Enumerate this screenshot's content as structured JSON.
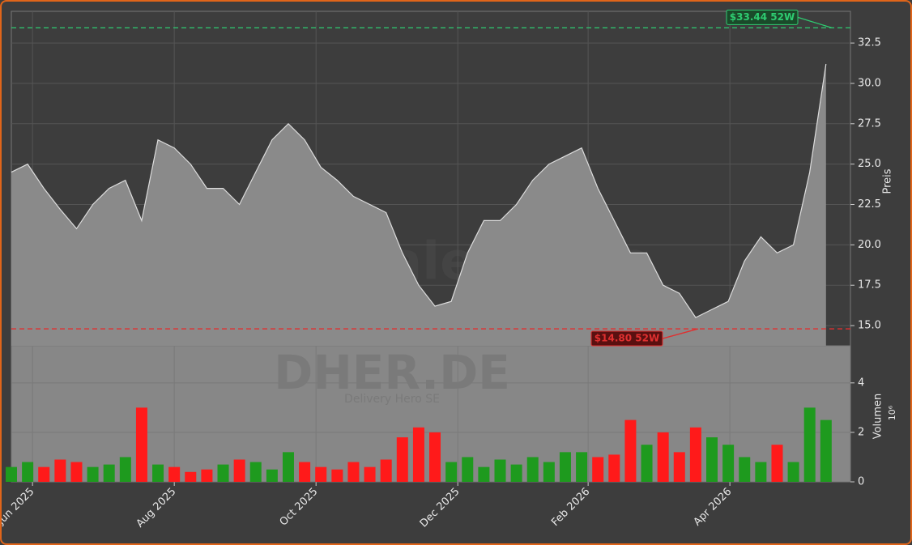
{
  "chart_data": [
    {
      "type": "area",
      "title_watermark": "forexsignale.trade",
      "ticker_watermark": "DHER.DE",
      "name_watermark": "Delivery Hero SE",
      "ylabel": "Preis",
      "color": "#8a8a8a",
      "line_color": "#dddddd",
      "grid": true,
      "values": [
        24.5,
        25.0,
        23.5,
        22.2,
        21.0,
        22.5,
        23.5,
        24.0,
        21.5,
        26.5,
        26.0,
        25.0,
        23.5,
        23.5,
        22.5,
        24.5,
        26.5,
        27.5,
        26.5,
        24.8,
        24.0,
        23.0,
        22.5,
        22.0,
        19.5,
        17.5,
        16.2,
        16.5,
        19.5,
        21.5,
        21.5,
        22.5,
        24.0,
        25.0,
        25.5,
        26.0,
        23.5,
        21.5,
        19.5,
        19.5,
        17.5,
        17.0,
        15.5,
        16.0,
        16.5,
        19.0,
        20.5,
        19.5,
        20.0,
        24.5,
        31.2
      ],
      "xlim": [
        0,
        51.5
      ],
      "xticks": [
        {
          "value": 1.3,
          "label": "Jun 2025"
        },
        {
          "value": 10.0,
          "label": "Aug 2025"
        },
        {
          "value": 18.7,
          "label": "Oct 2025"
        },
        {
          "value": 27.4,
          "label": "Dec 2025"
        },
        {
          "value": 35.4,
          "label": "Feb 2026"
        },
        {
          "value": 44.1,
          "label": "Apr 2026"
        }
      ],
      "ylim": [
        13.75,
        34.46
      ],
      "yticks": [
        {
          "value": 15,
          "label": "15.0"
        },
        17.5,
        {
          "value": 20,
          "label": "20.0"
        },
        22.5,
        {
          "value": 25,
          "label": "25.0"
        },
        27.5,
        {
          "value": 30,
          "label": "30.0"
        },
        32.5
      ],
      "high": {
        "value": 33.44,
        "label": "$33.44 52W",
        "color": "#2ecc71"
      },
      "low": {
        "value": 14.8,
        "label": "$14.80 52W",
        "color": "#e03030"
      }
    },
    {
      "type": "bar",
      "ylabel": "Volumen",
      "offset_label": "10⁶",
      "up_color": "#1e9a1e",
      "down_color": "#ff1a1a",
      "values": [
        0.6,
        0.8,
        0.6,
        0.9,
        0.8,
        0.6,
        0.7,
        1.0,
        3.0,
        0.7,
        0.6,
        0.4,
        0.5,
        0.7,
        0.9,
        0.8,
        0.5,
        1.2,
        0.8,
        0.6,
        0.5,
        0.8,
        0.6,
        0.9,
        1.8,
        2.2,
        2.0,
        0.8,
        1.0,
        0.6,
        0.9,
        0.7,
        1.0,
        0.8,
        1.2,
        1.2,
        1.0,
        1.1,
        2.5,
        1.5,
        2.0,
        1.2,
        2.2,
        1.8,
        1.5,
        1.0,
        0.8,
        1.5,
        0.8,
        3.0,
        2.5
      ],
      "ylim": [
        0,
        5.5
      ],
      "yticks": [
        0,
        2,
        4
      ]
    }
  ]
}
